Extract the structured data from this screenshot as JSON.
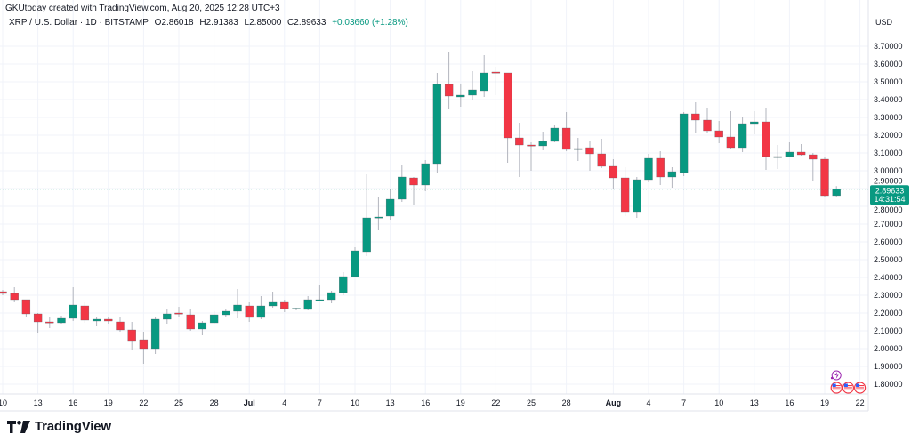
{
  "header": {
    "credit": "GKUtoday created with TradingView.com, Aug 20, 2025 12:28 UTC+3",
    "symbol": "XRP / U.S. Dollar · 1D · BITSTAMP",
    "open": "O2.86018",
    "high": "H2.91383",
    "low": "L2.85000",
    "close": "C2.89633",
    "change": "+0.03660 (+1.28%)"
  },
  "currency": "USD",
  "last_price": {
    "label": "2.89633",
    "countdown": "14:31:54",
    "value": 2.89633
  },
  "brand": "TradingView",
  "colors": {
    "up": "#089981",
    "down": "#F23645",
    "grid": "#F0F3FA",
    "text": "#131722",
    "events": "#9C27B0"
  },
  "chart_data": {
    "type": "candlestick",
    "title": "XRP / U.S. Dollar · 1D · BITSTAMP",
    "ylim": [
      1.75,
      3.75
    ],
    "grid": true,
    "y_ticks": [
      "3.70000",
      "3.60000",
      "3.50000",
      "3.40000",
      "3.30000",
      "3.20000",
      "3.10000",
      "3.00000",
      "2.90000",
      "2.80000",
      "2.70000",
      "2.60000",
      "2.50000",
      "2.40000",
      "2.30000",
      "2.20000",
      "2.10000",
      "2.00000",
      "1.90000",
      "1.80000"
    ],
    "x_ticks": [
      {
        "date": "2025-06-10",
        "label": "10"
      },
      {
        "date": "2025-06-13",
        "label": "13"
      },
      {
        "date": "2025-06-16",
        "label": "16"
      },
      {
        "date": "2025-06-19",
        "label": "19"
      },
      {
        "date": "2025-06-22",
        "label": "22"
      },
      {
        "date": "2025-06-25",
        "label": "25"
      },
      {
        "date": "2025-06-28",
        "label": "28"
      },
      {
        "date": "2025-07-01",
        "label": "Jul",
        "bold": true
      },
      {
        "date": "2025-07-04",
        "label": "4"
      },
      {
        "date": "2025-07-07",
        "label": "7"
      },
      {
        "date": "2025-07-10",
        "label": "10"
      },
      {
        "date": "2025-07-13",
        "label": "13"
      },
      {
        "date": "2025-07-16",
        "label": "16"
      },
      {
        "date": "2025-07-19",
        "label": "19"
      },
      {
        "date": "2025-07-22",
        "label": "22"
      },
      {
        "date": "2025-07-25",
        "label": "25"
      },
      {
        "date": "2025-07-28",
        "label": "28"
      },
      {
        "date": "2025-08-01",
        "label": "Aug",
        "bold": true
      },
      {
        "date": "2025-08-04",
        "label": "4"
      },
      {
        "date": "2025-08-07",
        "label": "7"
      },
      {
        "date": "2025-08-10",
        "label": "10"
      },
      {
        "date": "2025-08-13",
        "label": "13"
      },
      {
        "date": "2025-08-16",
        "label": "16"
      },
      {
        "date": "2025-08-19",
        "label": "19"
      },
      {
        "date": "2025-08-22",
        "label": "22"
      }
    ],
    "columns": [
      "date",
      "open",
      "high",
      "low",
      "close"
    ],
    "candles": [
      [
        "2025-06-10",
        2.32,
        2.33,
        2.3,
        2.31
      ],
      [
        "2025-06-11",
        2.31,
        2.345,
        2.26,
        2.275
      ],
      [
        "2025-06-12",
        2.275,
        2.275,
        2.175,
        2.195
      ],
      [
        "2025-06-13",
        2.195,
        2.2,
        2.09,
        2.15
      ],
      [
        "2025-06-14",
        2.15,
        2.18,
        2.115,
        2.145
      ],
      [
        "2025-06-15",
        2.145,
        2.185,
        2.14,
        2.17
      ],
      [
        "2025-06-16",
        2.17,
        2.345,
        2.155,
        2.245
      ],
      [
        "2025-06-17",
        2.24,
        2.26,
        2.145,
        2.16
      ],
      [
        "2025-06-18",
        2.155,
        2.175,
        2.125,
        2.165
      ],
      [
        "2025-06-19",
        2.165,
        2.18,
        2.14,
        2.155
      ],
      [
        "2025-06-20",
        2.15,
        2.18,
        2.095,
        2.105
      ],
      [
        "2025-06-21",
        2.105,
        2.15,
        1.995,
        2.045
      ],
      [
        "2025-06-22",
        2.05,
        2.095,
        1.915,
        2.0
      ],
      [
        "2025-06-23",
        2.0,
        2.175,
        1.97,
        2.165
      ],
      [
        "2025-06-24",
        2.165,
        2.22,
        2.14,
        2.195
      ],
      [
        "2025-06-25",
        2.2,
        2.235,
        2.175,
        2.195
      ],
      [
        "2025-06-26",
        2.19,
        2.22,
        2.1,
        2.11
      ],
      [
        "2025-06-27",
        2.11,
        2.155,
        2.075,
        2.145
      ],
      [
        "2025-06-28",
        2.145,
        2.21,
        2.14,
        2.19
      ],
      [
        "2025-06-29",
        2.19,
        2.225,
        2.18,
        2.21
      ],
      [
        "2025-06-30",
        2.21,
        2.335,
        2.17,
        2.245
      ],
      [
        "2025-07-01",
        2.24,
        2.26,
        2.15,
        2.175
      ],
      [
        "2025-07-02",
        2.175,
        2.295,
        2.165,
        2.24
      ],
      [
        "2025-07-03",
        2.24,
        2.32,
        2.23,
        2.26
      ],
      [
        "2025-07-04",
        2.26,
        2.275,
        2.205,
        2.225
      ],
      [
        "2025-07-05",
        2.225,
        2.23,
        2.215,
        2.227
      ],
      [
        "2025-07-06",
        2.22,
        2.295,
        2.215,
        2.275
      ],
      [
        "2025-07-07",
        2.27,
        2.355,
        2.265,
        2.275
      ],
      [
        "2025-07-08",
        2.275,
        2.325,
        2.255,
        2.315
      ],
      [
        "2025-07-09",
        2.315,
        2.43,
        2.3,
        2.405
      ],
      [
        "2025-07-10",
        2.405,
        2.57,
        2.4,
        2.55
      ],
      [
        "2025-07-11",
        2.545,
        2.98,
        2.52,
        2.735
      ],
      [
        "2025-07-12",
        2.735,
        2.85,
        2.665,
        2.74
      ],
      [
        "2025-07-13",
        2.745,
        2.9,
        2.725,
        2.84
      ],
      [
        "2025-07-14",
        2.84,
        3.035,
        2.825,
        2.965
      ],
      [
        "2025-07-15",
        2.96,
        2.965,
        2.81,
        2.92
      ],
      [
        "2025-07-16",
        2.92,
        3.06,
        2.885,
        3.04
      ],
      [
        "2025-07-17",
        3.04,
        3.55,
        2.99,
        3.485
      ],
      [
        "2025-07-18",
        3.485,
        3.67,
        3.345,
        3.42
      ],
      [
        "2025-07-19",
        3.415,
        3.49,
        3.36,
        3.425
      ],
      [
        "2025-07-20",
        3.425,
        3.56,
        3.395,
        3.455
      ],
      [
        "2025-07-21",
        3.45,
        3.65,
        3.415,
        3.55
      ],
      [
        "2025-07-22",
        3.555,
        3.585,
        3.425,
        3.552
      ],
      [
        "2025-07-23",
        3.55,
        3.55,
        3.045,
        3.185
      ],
      [
        "2025-07-24",
        3.185,
        3.27,
        2.965,
        3.145
      ],
      [
        "2025-07-25",
        3.145,
        3.16,
        3.0,
        3.14
      ],
      [
        "2025-07-26",
        3.14,
        3.22,
        3.115,
        3.165
      ],
      [
        "2025-07-27",
        3.165,
        3.255,
        3.16,
        3.24
      ],
      [
        "2025-07-28",
        3.24,
        3.33,
        3.11,
        3.12
      ],
      [
        "2025-07-29",
        3.12,
        3.185,
        3.055,
        3.125
      ],
      [
        "2025-07-30",
        3.13,
        3.165,
        3.0,
        3.095
      ],
      [
        "2025-07-31",
        3.095,
        3.18,
        3.015,
        3.025
      ],
      [
        "2025-08-01",
        3.025,
        3.065,
        2.895,
        2.96
      ],
      [
        "2025-08-02",
        2.96,
        3.02,
        2.745,
        2.77
      ],
      [
        "2025-08-03",
        2.77,
        2.965,
        2.735,
        2.95
      ],
      [
        "2025-08-04",
        2.95,
        3.095,
        2.935,
        3.07
      ],
      [
        "2025-08-05",
        3.07,
        3.11,
        2.92,
        2.965
      ],
      [
        "2025-08-06",
        2.965,
        3.02,
        2.905,
        2.995
      ],
      [
        "2025-08-07",
        2.99,
        3.33,
        2.97,
        3.32
      ],
      [
        "2025-08-08",
        3.32,
        3.385,
        3.21,
        3.285
      ],
      [
        "2025-08-09",
        3.285,
        3.35,
        3.215,
        3.225
      ],
      [
        "2025-08-10",
        3.225,
        3.28,
        3.155,
        3.19
      ],
      [
        "2025-08-11",
        3.19,
        3.335,
        3.12,
        3.13
      ],
      [
        "2025-08-12",
        3.13,
        3.305,
        3.105,
        3.265
      ],
      [
        "2025-08-13",
        3.265,
        3.335,
        3.205,
        3.275
      ],
      [
        "2025-08-14",
        3.275,
        3.35,
        3.005,
        3.08
      ],
      [
        "2025-08-15",
        3.08,
        3.145,
        3.01,
        3.08
      ],
      [
        "2025-08-16",
        3.08,
        3.16,
        3.075,
        3.105
      ],
      [
        "2025-08-17",
        3.105,
        3.15,
        3.085,
        3.09
      ],
      [
        "2025-08-18",
        3.09,
        3.1,
        2.945,
        3.065
      ],
      [
        "2025-08-19",
        3.065,
        3.075,
        2.85,
        2.86
      ],
      [
        "2025-08-20",
        2.86018,
        2.91383,
        2.85,
        2.89633
      ]
    ],
    "events": [
      {
        "icon": "lightning-icon",
        "date": "2025-08-20"
      },
      {
        "icon": "us-flag-icon",
        "date": "2025-08-20"
      },
      {
        "icon": "us-flag-icon",
        "date": "2025-08-21"
      },
      {
        "icon": "us-flag-icon",
        "date": "2025-08-22"
      }
    ]
  }
}
